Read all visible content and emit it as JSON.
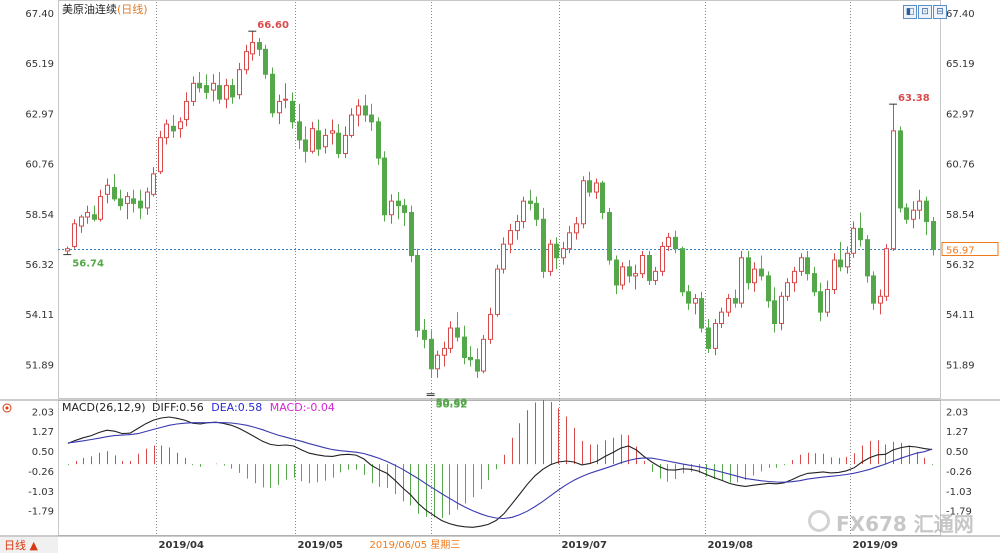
{
  "header": {
    "title": "美原油连续",
    "period_tag": "(日线)",
    "buttons": [
      "◧",
      "⊡",
      "⊟"
    ]
  },
  "indicator": {
    "name": "MACD(26,12,9)",
    "diff_label": "DIFF:0.56",
    "dea_label": "DEA:0.58",
    "macd_label": "MACD:-0.04"
  },
  "footer": {
    "period_tab": "日线 ▲",
    "watermark": "FX678 汇通网"
  },
  "colors": {
    "up": "#d94b4b",
    "down": "#54a849",
    "diff_line": "#222222",
    "dea_line": "#3a3ab0",
    "dea_label": "#2a2ad0",
    "macd_label": "#d426d4",
    "current_price": "#f07a1a",
    "grid": "#888888"
  },
  "chart_data": [
    {
      "type": "candlestick",
      "title": "美原油连续(日线)",
      "ylim": [
        50.5,
        67.8
      ],
      "yticks": [
        "67.40",
        "65.19",
        "62.97",
        "60.76",
        "58.54",
        "56.32",
        "54.11",
        "51.89"
      ],
      "xticks": [
        "2019/04",
        "2019/05",
        "2019/07",
        "2019/08",
        "2019/09"
      ],
      "cursor_date": "2019/06/05 星期三",
      "current_price": "56.97",
      "annotations": [
        {
          "text": "66.60",
          "value": 66.6,
          "type": "high"
        },
        {
          "text": "56.74",
          "value": 56.74,
          "type": "low"
        },
        {
          "text": "50.60",
          "value": 50.6,
          "type": "low"
        },
        {
          "text": "50.52",
          "value": 50.52,
          "type": "low"
        },
        {
          "text": "63.38",
          "value": 63.38,
          "type": "high"
        }
      ],
      "ohlc": [
        [
          56.9,
          57.1,
          56.74,
          57.0
        ],
        [
          57.1,
          58.3,
          57.0,
          58.1
        ],
        [
          58.0,
          58.5,
          57.7,
          58.4
        ],
        [
          58.4,
          58.9,
          58.1,
          58.6
        ],
        [
          58.5,
          58.9,
          58.2,
          58.3
        ],
        [
          58.3,
          59.6,
          58.2,
          59.3
        ],
        [
          59.4,
          60.1,
          59.0,
          59.8
        ],
        [
          59.7,
          60.3,
          59.1,
          59.2
        ],
        [
          59.2,
          59.6,
          58.7,
          58.9
        ],
        [
          59.0,
          59.5,
          58.3,
          59.3
        ],
        [
          59.2,
          59.6,
          58.6,
          59.0
        ],
        [
          59.1,
          59.6,
          58.3,
          58.8
        ],
        [
          58.8,
          59.7,
          58.5,
          59.5
        ],
        [
          59.4,
          60.6,
          59.3,
          60.3
        ],
        [
          60.4,
          62.2,
          60.3,
          61.9
        ],
        [
          61.9,
          62.7,
          61.6,
          62.5
        ],
        [
          62.4,
          62.9,
          61.9,
          62.2
        ],
        [
          62.3,
          62.8,
          61.9,
          62.6
        ],
        [
          62.7,
          63.9,
          62.4,
          63.5
        ],
        [
          63.5,
          64.6,
          63.3,
          64.3
        ],
        [
          64.3,
          64.8,
          63.9,
          64.1
        ],
        [
          64.2,
          64.7,
          63.6,
          63.9
        ],
        [
          64.0,
          64.7,
          63.5,
          64.3
        ],
        [
          64.2,
          64.8,
          63.4,
          63.6
        ],
        [
          63.6,
          64.5,
          63.2,
          64.2
        ],
        [
          64.2,
          64.5,
          63.4,
          63.7
        ],
        [
          63.8,
          65.2,
          63.6,
          64.9
        ],
        [
          64.9,
          66.0,
          64.7,
          65.7
        ],
        [
          65.6,
          66.6,
          65.3,
          66.1
        ],
        [
          66.1,
          66.3,
          65.5,
          65.8
        ],
        [
          65.8,
          66.0,
          64.5,
          64.7
        ],
        [
          64.7,
          65.0,
          62.8,
          63.0
        ],
        [
          63.0,
          63.8,
          62.5,
          63.5
        ],
        [
          63.6,
          64.3,
          63.2,
          63.6
        ],
        [
          63.5,
          63.9,
          62.3,
          62.6
        ],
        [
          62.6,
          63.4,
          61.4,
          61.8
        ],
        [
          61.8,
          62.4,
          60.8,
          61.3
        ],
        [
          61.3,
          62.6,
          61.2,
          62.3
        ],
        [
          62.2,
          62.7,
          61.1,
          61.4
        ],
        [
          61.5,
          62.3,
          61.2,
          62.0
        ],
        [
          62.1,
          62.7,
          61.6,
          62.2
        ],
        [
          62.1,
          62.5,
          61.0,
          61.2
        ],
        [
          61.2,
          62.4,
          61.0,
          62.0
        ],
        [
          62.0,
          63.2,
          61.9,
          62.9
        ],
        [
          62.9,
          63.6,
          62.4,
          63.3
        ],
        [
          63.3,
          63.8,
          62.6,
          62.9
        ],
        [
          62.9,
          63.4,
          62.2,
          62.6
        ],
        [
          62.6,
          62.8,
          60.7,
          61.0
        ],
        [
          61.0,
          61.3,
          58.2,
          58.5
        ],
        [
          58.5,
          59.4,
          58.1,
          59.1
        ],
        [
          59.1,
          59.5,
          58.3,
          58.9
        ],
        [
          58.9,
          59.2,
          58.0,
          58.6
        ],
        [
          58.6,
          58.9,
          56.4,
          56.7
        ],
        [
          56.7,
          57.0,
          53.1,
          53.4
        ],
        [
          53.4,
          53.9,
          52.6,
          53.0
        ],
        [
          53.0,
          53.4,
          51.3,
          51.7
        ],
        [
          51.7,
          52.5,
          51.3,
          52.3
        ],
        [
          52.3,
          52.9,
          51.8,
          52.6
        ],
        [
          52.6,
          53.8,
          52.4,
          53.5
        ],
        [
          53.5,
          54.2,
          52.9,
          53.1
        ],
        [
          53.1,
          53.6,
          51.9,
          52.2
        ],
        [
          52.2,
          52.7,
          51.8,
          52.1
        ],
        [
          52.1,
          52.6,
          51.3,
          51.6
        ],
        [
          51.6,
          53.2,
          51.5,
          53.0
        ],
        [
          53.0,
          54.4,
          52.8,
          54.1
        ],
        [
          54.1,
          56.3,
          54.0,
          56.1
        ],
        [
          56.1,
          57.5,
          55.9,
          57.2
        ],
        [
          57.2,
          58.1,
          56.8,
          57.8
        ],
        [
          57.8,
          58.5,
          57.4,
          58.2
        ],
        [
          58.2,
          59.3,
          57.9,
          59.1
        ],
        [
          59.1,
          59.6,
          58.7,
          59.0
        ],
        [
          59.0,
          59.3,
          58.0,
          58.3
        ],
        [
          58.3,
          58.8,
          55.7,
          56.0
        ],
        [
          56.0,
          57.4,
          55.8,
          57.2
        ],
        [
          57.2,
          57.5,
          56.1,
          56.6
        ],
        [
          56.6,
          57.3,
          56.3,
          57.0
        ],
        [
          57.0,
          58.0,
          56.8,
          57.7
        ],
        [
          57.7,
          58.4,
          57.4,
          58.1
        ],
        [
          58.1,
          60.2,
          57.9,
          60.0
        ],
        [
          60.0,
          60.4,
          59.3,
          59.5
        ],
        [
          59.5,
          60.1,
          59.2,
          59.9
        ],
        [
          59.9,
          60.0,
          58.3,
          58.6
        ],
        [
          58.6,
          58.8,
          56.3,
          56.5
        ],
        [
          56.5,
          56.7,
          55.0,
          55.4
        ],
        [
          55.4,
          56.4,
          55.2,
          56.2
        ],
        [
          56.2,
          56.5,
          55.5,
          55.8
        ],
        [
          55.8,
          56.3,
          55.2,
          55.9
        ],
        [
          55.9,
          56.9,
          55.7,
          56.7
        ],
        [
          56.7,
          56.9,
          55.4,
          55.6
        ],
        [
          55.6,
          56.2,
          55.4,
          56.0
        ],
        [
          56.0,
          57.3,
          55.8,
          57.1
        ],
        [
          57.1,
          57.7,
          56.9,
          57.5
        ],
        [
          57.5,
          57.8,
          56.8,
          57.0
        ],
        [
          57.0,
          57.1,
          54.9,
          55.1
        ],
        [
          55.1,
          55.4,
          54.3,
          54.6
        ],
        [
          54.6,
          55.0,
          54.1,
          54.8
        ],
        [
          54.8,
          55.1,
          53.3,
          53.5
        ],
        [
          53.5,
          53.9,
          52.4,
          52.6
        ],
        [
          52.6,
          53.9,
          52.3,
          53.7
        ],
        [
          53.7,
          54.4,
          53.5,
          54.2
        ],
        [
          54.2,
          55.0,
          54.0,
          54.8
        ],
        [
          54.8,
          55.2,
          54.4,
          54.6
        ],
        [
          54.6,
          56.9,
          54.4,
          56.6
        ],
        [
          56.6,
          56.9,
          55.2,
          55.5
        ],
        [
          55.5,
          56.4,
          55.1,
          56.1
        ],
        [
          56.1,
          56.7,
          55.6,
          55.8
        ],
        [
          55.8,
          56.0,
          54.4,
          54.7
        ],
        [
          54.7,
          55.3,
          53.3,
          53.7
        ],
        [
          53.7,
          55.1,
          53.4,
          54.9
        ],
        [
          54.9,
          55.7,
          54.7,
          55.5
        ],
        [
          55.5,
          56.2,
          55.1,
          56.0
        ],
        [
          56.0,
          56.8,
          55.8,
          56.6
        ],
        [
          56.6,
          56.9,
          55.6,
          55.9
        ],
        [
          55.9,
          56.2,
          54.9,
          55.1
        ],
        [
          55.1,
          55.5,
          53.8,
          54.2
        ],
        [
          54.2,
          55.6,
          54.0,
          55.2
        ],
        [
          55.2,
          56.8,
          55.0,
          56.5
        ],
        [
          56.5,
          57.3,
          56.0,
          56.2
        ],
        [
          56.2,
          57.1,
          55.9,
          56.8
        ],
        [
          56.8,
          58.2,
          56.6,
          57.9
        ],
        [
          57.9,
          58.6,
          57.1,
          57.4
        ],
        [
          57.4,
          57.6,
          55.5,
          55.8
        ],
        [
          55.8,
          56.0,
          54.3,
          54.6
        ],
        [
          54.6,
          55.2,
          54.1,
          54.9
        ],
        [
          54.9,
          57.2,
          54.7,
          57.0
        ],
        [
          57.0,
          63.38,
          56.9,
          62.2
        ],
        [
          62.2,
          62.4,
          58.6,
          58.8
        ],
        [
          58.8,
          59.0,
          58.1,
          58.3
        ],
        [
          58.3,
          59.1,
          57.9,
          58.7
        ],
        [
          58.7,
          59.6,
          58.3,
          59.1
        ],
        [
          59.1,
          59.3,
          57.6,
          58.2
        ],
        [
          58.2,
          58.4,
          56.7,
          56.97
        ]
      ]
    },
    {
      "type": "bar+line",
      "title": "MACD(26,12,9)",
      "ylim": [
        -2.7,
        2.4
      ],
      "yticks": [
        "2.03",
        "1.27",
        "0.50",
        "-0.26",
        "-1.03",
        "-1.79"
      ],
      "series": [
        {
          "name": "DIFF",
          "values": [
            0.8,
            0.92,
            1.02,
            1.1,
            1.22,
            1.31,
            1.27,
            1.18,
            1.2,
            1.38,
            1.56,
            1.7,
            1.78,
            1.82,
            1.77,
            1.7,
            1.58,
            1.55,
            1.6,
            1.62,
            1.57,
            1.5,
            1.38,
            1.22,
            1.05,
            0.88,
            0.76,
            0.72,
            0.74,
            0.7,
            0.55,
            0.42,
            0.36,
            0.31,
            0.3,
            0.36,
            0.38,
            0.35,
            0.2,
            -0.05,
            -0.22,
            -0.36,
            -0.62,
            -0.92,
            -1.18,
            -1.52,
            -1.78,
            -1.98,
            -2.18,
            -2.3,
            -2.38,
            -2.42,
            -2.44,
            -2.4,
            -2.33,
            -2.18,
            -1.92,
            -1.55,
            -1.17,
            -0.78,
            -0.45,
            -0.2,
            -0.02,
            0.08,
            0.12,
            0.08,
            -0.03,
            0.02,
            0.12,
            0.3,
            0.45,
            0.62,
            0.7,
            0.55,
            0.3,
            0.08,
            -0.1,
            -0.22,
            -0.23,
            -0.18,
            -0.2,
            -0.27,
            -0.4,
            -0.52,
            -0.63,
            -0.75,
            -0.82,
            -0.86,
            -0.82,
            -0.78,
            -0.74,
            -0.76,
            -0.72,
            -0.6,
            -0.46,
            -0.36,
            -0.33,
            -0.3,
            -0.34,
            -0.32,
            -0.26,
            -0.14,
            0.08,
            0.25,
            0.36,
            0.38,
            0.55,
            0.64,
            0.69,
            0.66,
            0.6,
            0.56
          ]
        },
        {
          "name": "DEA",
          "values": [
            0.82,
            0.86,
            0.9,
            0.95,
            1.0,
            1.06,
            1.1,
            1.12,
            1.14,
            1.18,
            1.26,
            1.34,
            1.42,
            1.5,
            1.55,
            1.58,
            1.6,
            1.6,
            1.6,
            1.61,
            1.6,
            1.59,
            1.55,
            1.5,
            1.42,
            1.33,
            1.22,
            1.12,
            1.04,
            0.96,
            0.88,
            0.79,
            0.71,
            0.63,
            0.56,
            0.52,
            0.49,
            0.46,
            0.41,
            0.32,
            0.22,
            0.1,
            -0.04,
            -0.2,
            -0.38,
            -0.56,
            -0.76,
            -0.95,
            -1.14,
            -1.32,
            -1.5,
            -1.66,
            -1.8,
            -1.92,
            -2.02,
            -2.08,
            -2.1,
            -2.06,
            -1.96,
            -1.82,
            -1.64,
            -1.44,
            -1.22,
            -1.0,
            -0.8,
            -0.62,
            -0.48,
            -0.36,
            -0.26,
            -0.16,
            -0.06,
            0.05,
            0.14,
            0.21,
            0.24,
            0.23,
            0.18,
            0.12,
            0.06,
            0.0,
            -0.05,
            -0.1,
            -0.16,
            -0.23,
            -0.31,
            -0.39,
            -0.47,
            -0.55,
            -0.6,
            -0.64,
            -0.67,
            -0.69,
            -0.7,
            -0.68,
            -0.64,
            -0.58,
            -0.54,
            -0.5,
            -0.47,
            -0.44,
            -0.4,
            -0.35,
            -0.28,
            -0.2,
            -0.1,
            0.0,
            0.12,
            0.23,
            0.33,
            0.42,
            0.48,
            0.58
          ]
        },
        {
          "name": "MACD",
          "values": [
            -0.04,
            0.12,
            0.24,
            0.3,
            0.44,
            0.5,
            0.34,
            0.12,
            0.12,
            0.4,
            0.6,
            0.72,
            0.72,
            0.64,
            0.44,
            0.24,
            -0.04,
            -0.1,
            0.0,
            0.02,
            -0.06,
            -0.18,
            -0.34,
            -0.56,
            -0.74,
            -0.9,
            -0.92,
            -0.8,
            -0.6,
            -0.52,
            -0.66,
            -0.74,
            -0.7,
            -0.64,
            -0.52,
            -0.32,
            -0.22,
            -0.22,
            -0.42,
            -0.74,
            -0.88,
            -0.92,
            -1.16,
            -1.44,
            -1.6,
            -1.92,
            -2.04,
            -2.06,
            -2.08,
            -1.96,
            -1.76,
            -1.52,
            -1.28,
            -0.96,
            -0.62,
            -0.2,
            0.36,
            1.02,
            1.58,
            2.08,
            2.38,
            2.48,
            2.4,
            2.16,
            1.84,
            1.4,
            0.9,
            0.76,
            0.76,
            0.92,
            1.02,
            1.14,
            1.12,
            0.68,
            0.12,
            -0.3,
            -0.56,
            -0.68,
            -0.58,
            -0.36,
            -0.3,
            -0.34,
            -0.48,
            -0.58,
            -0.64,
            -0.72,
            -0.7,
            -0.62,
            -0.44,
            -0.28,
            -0.14,
            -0.14,
            -0.04,
            0.16,
            0.36,
            0.44,
            0.42,
            0.4,
            0.26,
            0.24,
            0.28,
            0.42,
            0.72,
            0.9,
            0.92,
            0.76,
            0.86,
            0.82,
            0.72,
            0.48,
            0.24,
            -0.04
          ]
        }
      ]
    }
  ]
}
